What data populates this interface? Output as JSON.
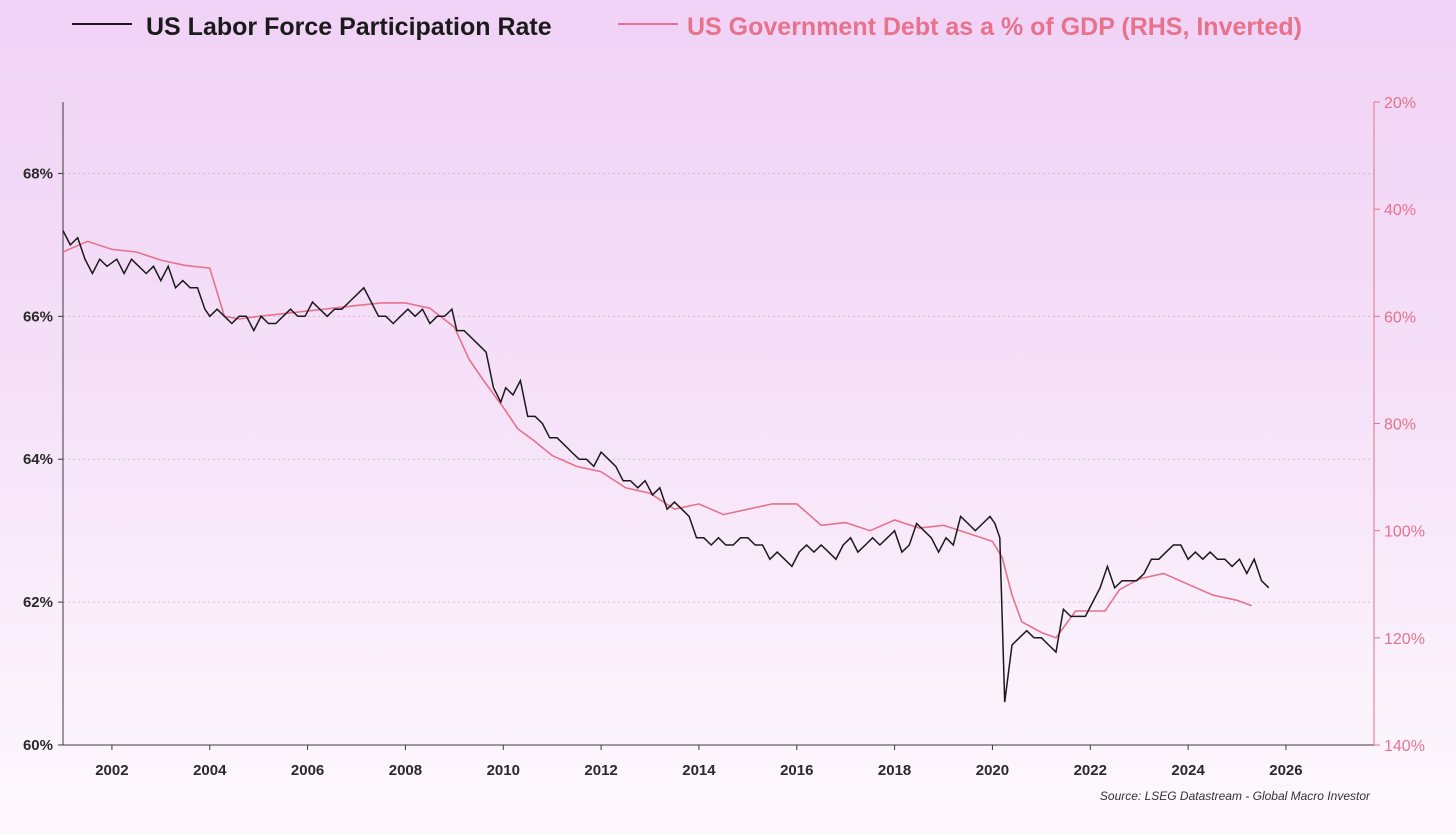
{
  "chart_data": {
    "type": "line",
    "title": "",
    "legend": [
      {
        "name": "US Labor Force Participation Rate",
        "color": "#1a1a1a"
      },
      {
        "name": "US Government Debt as a % of GDP (RHS, Inverted)",
        "color": "#e6728c"
      }
    ],
    "source": "Source: LSEG Datastream - Global Macro Investor",
    "xlim": [
      2001.0,
      2027.8
    ],
    "x_ticks": [
      "2002",
      "2004",
      "2006",
      "2008",
      "2010",
      "2012",
      "2014",
      "2016",
      "2018",
      "2020",
      "2022",
      "2024",
      "2026"
    ],
    "left_axis": {
      "ylim": [
        60,
        69
      ],
      "ticks": [
        "60%",
        "62%",
        "64%",
        "66%",
        "68%"
      ]
    },
    "right_axis": {
      "ylim": [
        140,
        20
      ],
      "inverted": true,
      "ticks": [
        "20%",
        "40%",
        "60%",
        "80%",
        "100%",
        "120%",
        "140%"
      ]
    },
    "series": [
      {
        "name": "US Labor Force Participation Rate",
        "axis": "left",
        "color": "#1a1a1a",
        "points": [
          [
            2001.0,
            67.2
          ],
          [
            2001.15,
            67.0
          ],
          [
            2001.3,
            67.1
          ],
          [
            2001.45,
            66.8
          ],
          [
            2001.6,
            66.6
          ],
          [
            2001.75,
            66.8
          ],
          [
            2001.9,
            66.7
          ],
          [
            2002.1,
            66.8
          ],
          [
            2002.25,
            66.6
          ],
          [
            2002.4,
            66.8
          ],
          [
            2002.55,
            66.7
          ],
          [
            2002.7,
            66.6
          ],
          [
            2002.85,
            66.7
          ],
          [
            2003.0,
            66.5
          ],
          [
            2003.15,
            66.7
          ],
          [
            2003.3,
            66.4
          ],
          [
            2003.45,
            66.5
          ],
          [
            2003.6,
            66.4
          ],
          [
            2003.75,
            66.4
          ],
          [
            2003.9,
            66.1
          ],
          [
            2004.0,
            66.0
          ],
          [
            2004.15,
            66.1
          ],
          [
            2004.3,
            66.0
          ],
          [
            2004.45,
            65.9
          ],
          [
            2004.6,
            66.0
          ],
          [
            2004.75,
            66.0
          ],
          [
            2004.9,
            65.8
          ],
          [
            2005.05,
            66.0
          ],
          [
            2005.2,
            65.9
          ],
          [
            2005.35,
            65.9
          ],
          [
            2005.5,
            66.0
          ],
          [
            2005.65,
            66.1
          ],
          [
            2005.8,
            66.0
          ],
          [
            2005.95,
            66.0
          ],
          [
            2006.1,
            66.2
          ],
          [
            2006.25,
            66.1
          ],
          [
            2006.4,
            66.0
          ],
          [
            2006.55,
            66.1
          ],
          [
            2006.7,
            66.1
          ],
          [
            2006.85,
            66.2
          ],
          [
            2007.0,
            66.3
          ],
          [
            2007.15,
            66.4
          ],
          [
            2007.3,
            66.2
          ],
          [
            2007.45,
            66.0
          ],
          [
            2007.6,
            66.0
          ],
          [
            2007.75,
            65.9
          ],
          [
            2007.9,
            66.0
          ],
          [
            2008.05,
            66.1
          ],
          [
            2008.2,
            66.0
          ],
          [
            2008.35,
            66.1
          ],
          [
            2008.5,
            65.9
          ],
          [
            2008.65,
            66.0
          ],
          [
            2008.8,
            66.0
          ],
          [
            2008.95,
            66.1
          ],
          [
            2009.05,
            65.8
          ],
          [
            2009.2,
            65.8
          ],
          [
            2009.35,
            65.7
          ],
          [
            2009.5,
            65.6
          ],
          [
            2009.65,
            65.5
          ],
          [
            2009.8,
            65.0
          ],
          [
            2009.95,
            64.8
          ],
          [
            2010.05,
            65.0
          ],
          [
            2010.2,
            64.9
          ],
          [
            2010.35,
            65.1
          ],
          [
            2010.5,
            64.6
          ],
          [
            2010.65,
            64.6
          ],
          [
            2010.8,
            64.5
          ],
          [
            2010.95,
            64.3
          ],
          [
            2011.1,
            64.3
          ],
          [
            2011.25,
            64.2
          ],
          [
            2011.4,
            64.1
          ],
          [
            2011.55,
            64.0
          ],
          [
            2011.7,
            64.0
          ],
          [
            2011.85,
            63.9
          ],
          [
            2012.0,
            64.1
          ],
          [
            2012.15,
            64.0
          ],
          [
            2012.3,
            63.9
          ],
          [
            2012.45,
            63.7
          ],
          [
            2012.6,
            63.7
          ],
          [
            2012.75,
            63.6
          ],
          [
            2012.9,
            63.7
          ],
          [
            2013.05,
            63.5
          ],
          [
            2013.2,
            63.6
          ],
          [
            2013.35,
            63.3
          ],
          [
            2013.5,
            63.4
          ],
          [
            2013.65,
            63.3
          ],
          [
            2013.8,
            63.2
          ],
          [
            2013.95,
            62.9
          ],
          [
            2014.1,
            62.9
          ],
          [
            2014.25,
            62.8
          ],
          [
            2014.4,
            62.9
          ],
          [
            2014.55,
            62.8
          ],
          [
            2014.7,
            62.8
          ],
          [
            2014.85,
            62.9
          ],
          [
            2015.0,
            62.9
          ],
          [
            2015.15,
            62.8
          ],
          [
            2015.3,
            62.8
          ],
          [
            2015.45,
            62.6
          ],
          [
            2015.6,
            62.7
          ],
          [
            2015.75,
            62.6
          ],
          [
            2015.9,
            62.5
          ],
          [
            2016.05,
            62.7
          ],
          [
            2016.2,
            62.8
          ],
          [
            2016.35,
            62.7
          ],
          [
            2016.5,
            62.8
          ],
          [
            2016.65,
            62.7
          ],
          [
            2016.8,
            62.6
          ],
          [
            2016.95,
            62.8
          ],
          [
            2017.1,
            62.9
          ],
          [
            2017.25,
            62.7
          ],
          [
            2017.4,
            62.8
          ],
          [
            2017.55,
            62.9
          ],
          [
            2017.7,
            62.8
          ],
          [
            2017.85,
            62.9
          ],
          [
            2018.0,
            63.0
          ],
          [
            2018.15,
            62.7
          ],
          [
            2018.3,
            62.8
          ],
          [
            2018.45,
            63.1
          ],
          [
            2018.6,
            63.0
          ],
          [
            2018.75,
            62.9
          ],
          [
            2018.9,
            62.7
          ],
          [
            2019.05,
            62.9
          ],
          [
            2019.2,
            62.8
          ],
          [
            2019.35,
            63.2
          ],
          [
            2019.5,
            63.1
          ],
          [
            2019.65,
            63.0
          ],
          [
            2019.8,
            63.1
          ],
          [
            2019.95,
            63.2
          ],
          [
            2020.05,
            63.1
          ],
          [
            2020.15,
            62.9
          ],
          [
            2020.25,
            60.6
          ],
          [
            2020.4,
            61.4
          ],
          [
            2020.55,
            61.5
          ],
          [
            2020.7,
            61.6
          ],
          [
            2020.85,
            61.5
          ],
          [
            2021.0,
            61.5
          ],
          [
            2021.15,
            61.4
          ],
          [
            2021.3,
            61.3
          ],
          [
            2021.45,
            61.9
          ],
          [
            2021.6,
            61.8
          ],
          [
            2021.75,
            61.8
          ],
          [
            2021.9,
            61.8
          ],
          [
            2022.05,
            62.0
          ],
          [
            2022.2,
            62.2
          ],
          [
            2022.35,
            62.5
          ],
          [
            2022.5,
            62.2
          ],
          [
            2022.65,
            62.3
          ],
          [
            2022.8,
            62.3
          ],
          [
            2022.95,
            62.3
          ],
          [
            2023.1,
            62.4
          ],
          [
            2023.25,
            62.6
          ],
          [
            2023.4,
            62.6
          ],
          [
            2023.55,
            62.7
          ],
          [
            2023.7,
            62.8
          ],
          [
            2023.85,
            62.8
          ],
          [
            2024.0,
            62.6
          ],
          [
            2024.15,
            62.7
          ],
          [
            2024.3,
            62.6
          ],
          [
            2024.45,
            62.7
          ],
          [
            2024.6,
            62.6
          ],
          [
            2024.75,
            62.6
          ],
          [
            2024.9,
            62.5
          ],
          [
            2025.05,
            62.6
          ],
          [
            2025.2,
            62.4
          ],
          [
            2025.35,
            62.6
          ],
          [
            2025.5,
            62.3
          ],
          [
            2025.65,
            62.2
          ]
        ]
      },
      {
        "name": "US Government Debt as a % of GDP (RHS, Inverted)",
        "axis": "right",
        "color": "#e6728c",
        "points": [
          [
            2001.0,
            48
          ],
          [
            2001.5,
            46
          ],
          [
            2002.0,
            47.5
          ],
          [
            2002.5,
            48
          ],
          [
            2003.0,
            49.5
          ],
          [
            2003.5,
            50.5
          ],
          [
            2004.0,
            51
          ],
          [
            2004.3,
            60
          ],
          [
            2004.6,
            60.5
          ],
          [
            2005.0,
            60
          ],
          [
            2005.5,
            59.5
          ],
          [
            2006.0,
            59
          ],
          [
            2006.5,
            58.5
          ],
          [
            2007.0,
            58
          ],
          [
            2007.5,
            57.5
          ],
          [
            2008.0,
            57.5
          ],
          [
            2008.5,
            58.5
          ],
          [
            2009.0,
            62
          ],
          [
            2009.3,
            68
          ],
          [
            2009.6,
            72
          ],
          [
            2010.0,
            77
          ],
          [
            2010.3,
            81
          ],
          [
            2010.6,
            83
          ],
          [
            2011.0,
            86
          ],
          [
            2011.5,
            88
          ],
          [
            2012.0,
            89
          ],
          [
            2012.5,
            92
          ],
          [
            2013.0,
            93
          ],
          [
            2013.5,
            96
          ],
          [
            2014.0,
            95
          ],
          [
            2014.5,
            97
          ],
          [
            2015.0,
            96
          ],
          [
            2015.5,
            95
          ],
          [
            2016.0,
            95
          ],
          [
            2016.5,
            99
          ],
          [
            2017.0,
            98.5
          ],
          [
            2017.5,
            100
          ],
          [
            2018.0,
            98
          ],
          [
            2018.5,
            99.5
          ],
          [
            2019.0,
            99
          ],
          [
            2019.5,
            100.5
          ],
          [
            2020.0,
            102
          ],
          [
            2020.2,
            105
          ],
          [
            2020.4,
            112
          ],
          [
            2020.6,
            117
          ],
          [
            2021.0,
            119
          ],
          [
            2021.3,
            120
          ],
          [
            2021.7,
            115
          ],
          [
            2022.0,
            115
          ],
          [
            2022.3,
            115
          ],
          [
            2022.6,
            111
          ],
          [
            2023.0,
            109
          ],
          [
            2023.5,
            108
          ],
          [
            2024.0,
            110
          ],
          [
            2024.5,
            112
          ],
          [
            2025.0,
            113
          ],
          [
            2025.3,
            114
          ]
        ]
      }
    ]
  }
}
